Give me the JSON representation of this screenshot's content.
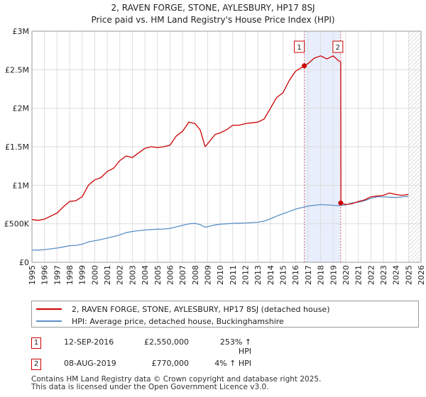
{
  "chart_data": {
    "type": "line",
    "title": "2, RAVEN FORGE, STONE, AYLESBURY, HP17 8SJ",
    "subtitle": "Price paid vs. HM Land Registry's House Price Index (HPI)",
    "xlabel": "",
    "ylabel": "",
    "xlim": [
      1995,
      2026
    ],
    "ylim": [
      0,
      3000000
    ],
    "x_ticks": [
      "1995",
      "1996",
      "1997",
      "1998",
      "1999",
      "2000",
      "2001",
      "2002",
      "2003",
      "2004",
      "2005",
      "2006",
      "2007",
      "2008",
      "2009",
      "2010",
      "2011",
      "2012",
      "2013",
      "2014",
      "2015",
      "2016",
      "2017",
      "2018",
      "2019",
      "2020",
      "2021",
      "2022",
      "2023",
      "2024",
      "2025",
      "2026"
    ],
    "y_ticks": [
      {
        "value": 0,
        "label": "£0"
      },
      {
        "value": 500000,
        "label": "£500K"
      },
      {
        "value": 1000000,
        "label": "£1M"
      },
      {
        "value": 1500000,
        "label": "£1.5M"
      },
      {
        "value": 2000000,
        "label": "£2M"
      },
      {
        "value": 2500000,
        "label": "£2.5M"
      },
      {
        "value": 3000000,
        "label": "£3M"
      }
    ],
    "grid": true,
    "shaded_period": {
      "x_start": 2016.7,
      "x_end": 2019.6
    },
    "hatched_period": {
      "x_start": 2025.0,
      "x_end": 2026.0
    },
    "series": [
      {
        "name": "2, RAVEN FORGE, STONE, AYLESBURY, HP17 8SJ (detached house)",
        "color": "#cc0000",
        "x": [
          1995.0,
          1995.5,
          1996.0,
          1996.5,
          1997.0,
          1997.5,
          1998.0,
          1998.5,
          1999.0,
          1999.5,
          2000.0,
          2000.5,
          2001.0,
          2001.5,
          2002.0,
          2002.5,
          2003.0,
          2003.5,
          2004.0,
          2004.5,
          2005.0,
          2005.5,
          2006.0,
          2006.5,
          2007.0,
          2007.5,
          2008.0,
          2008.4,
          2008.8,
          2009.2,
          2009.6,
          2010.0,
          2010.5,
          2011.0,
          2011.5,
          2012.0,
          2012.5,
          2013.0,
          2013.5,
          2014.0,
          2014.5,
          2015.0,
          2015.5,
          2016.0,
          2016.5,
          2016.7,
          2017.0,
          2017.5,
          2018.0,
          2018.5,
          2019.0,
          2019.4,
          2019.6,
          2019.62,
          2020.0,
          2020.5,
          2021.0,
          2021.5,
          2022.0,
          2022.5,
          2023.0,
          2023.5,
          2024.0,
          2024.5,
          2025.0
        ],
        "values": [
          555000,
          545000,
          560000,
          600000,
          640000,
          720000,
          790000,
          800000,
          850000,
          1000000,
          1070000,
          1100000,
          1180000,
          1220000,
          1320000,
          1380000,
          1360000,
          1420000,
          1480000,
          1500000,
          1490000,
          1500000,
          1520000,
          1640000,
          1700000,
          1820000,
          1800000,
          1720000,
          1500000,
          1580000,
          1660000,
          1680000,
          1720000,
          1780000,
          1780000,
          1800000,
          1810000,
          1820000,
          1860000,
          2000000,
          2140000,
          2200000,
          2360000,
          2480000,
          2530000,
          2550000,
          2580000,
          2650000,
          2680000,
          2640000,
          2680000,
          2620000,
          2600000,
          770000,
          750000,
          760000,
          790000,
          810000,
          850000,
          860000,
          870000,
          900000,
          880000,
          870000,
          880000
        ]
      },
      {
        "name": "HPI: Average price, detached house, Buckinghamshire",
        "color": "#5b8fc7",
        "x": [
          1995.0,
          1995.5,
          1996.0,
          1996.5,
          1997.0,
          1997.5,
          1998.0,
          1998.5,
          1999.0,
          1999.5,
          2000.0,
          2000.5,
          2001.0,
          2001.5,
          2002.0,
          2002.5,
          2003.0,
          2003.5,
          2004.0,
          2004.5,
          2005.0,
          2005.5,
          2006.0,
          2006.5,
          2007.0,
          2007.5,
          2008.0,
          2008.4,
          2008.8,
          2009.2,
          2009.6,
          2010.0,
          2010.5,
          2011.0,
          2011.5,
          2012.0,
          2012.5,
          2013.0,
          2013.5,
          2014.0,
          2014.5,
          2015.0,
          2015.5,
          2016.0,
          2016.5,
          2017.0,
          2017.5,
          2018.0,
          2018.5,
          2019.0,
          2019.5,
          2020.0,
          2020.5,
          2021.0,
          2021.5,
          2022.0,
          2022.5,
          2023.0,
          2023.5,
          2024.0,
          2024.5,
          2025.0
        ],
        "values": [
          160000,
          158000,
          165000,
          175000,
          185000,
          200000,
          215000,
          220000,
          235000,
          265000,
          280000,
          295000,
          315000,
          335000,
          355000,
          385000,
          400000,
          410000,
          420000,
          425000,
          430000,
          432000,
          440000,
          460000,
          480000,
          500000,
          505000,
          490000,
          455000,
          470000,
          485000,
          495000,
          500000,
          505000,
          508000,
          510000,
          515000,
          520000,
          535000,
          565000,
          600000,
          630000,
          660000,
          690000,
          710000,
          730000,
          740000,
          750000,
          745000,
          740000,
          735000,
          745000,
          770000,
          780000,
          800000,
          830000,
          850000,
          850000,
          845000,
          840000,
          850000,
          855000
        ]
      }
    ],
    "annotations": [
      {
        "label": "1",
        "x": 2016.7,
        "value": 2550000
      },
      {
        "label": "2",
        "x": 2019.6,
        "value": 770000
      }
    ]
  },
  "legend": {
    "entries": [
      {
        "label": "2, RAVEN FORGE, STONE, AYLESBURY, HP17 8SJ (detached house)",
        "color": "#cc0000"
      },
      {
        "label": "HPI: Average price, detached house, Buckinghamshire",
        "color": "#5b8fc7"
      }
    ]
  },
  "transactions": [
    {
      "marker": "1",
      "date": "12-SEP-2016",
      "price": "£2,550,000",
      "hpi": "253% ↑ HPI"
    },
    {
      "marker": "2",
      "date": "08-AUG-2019",
      "price": "£770,000",
      "hpi": "4% ↑ HPI"
    }
  ],
  "footer": {
    "line1": "Contains HM Land Registry data © Crown copyright and database right 2025.",
    "line2": "This data is licensed under the Open Government Licence v3.0."
  }
}
